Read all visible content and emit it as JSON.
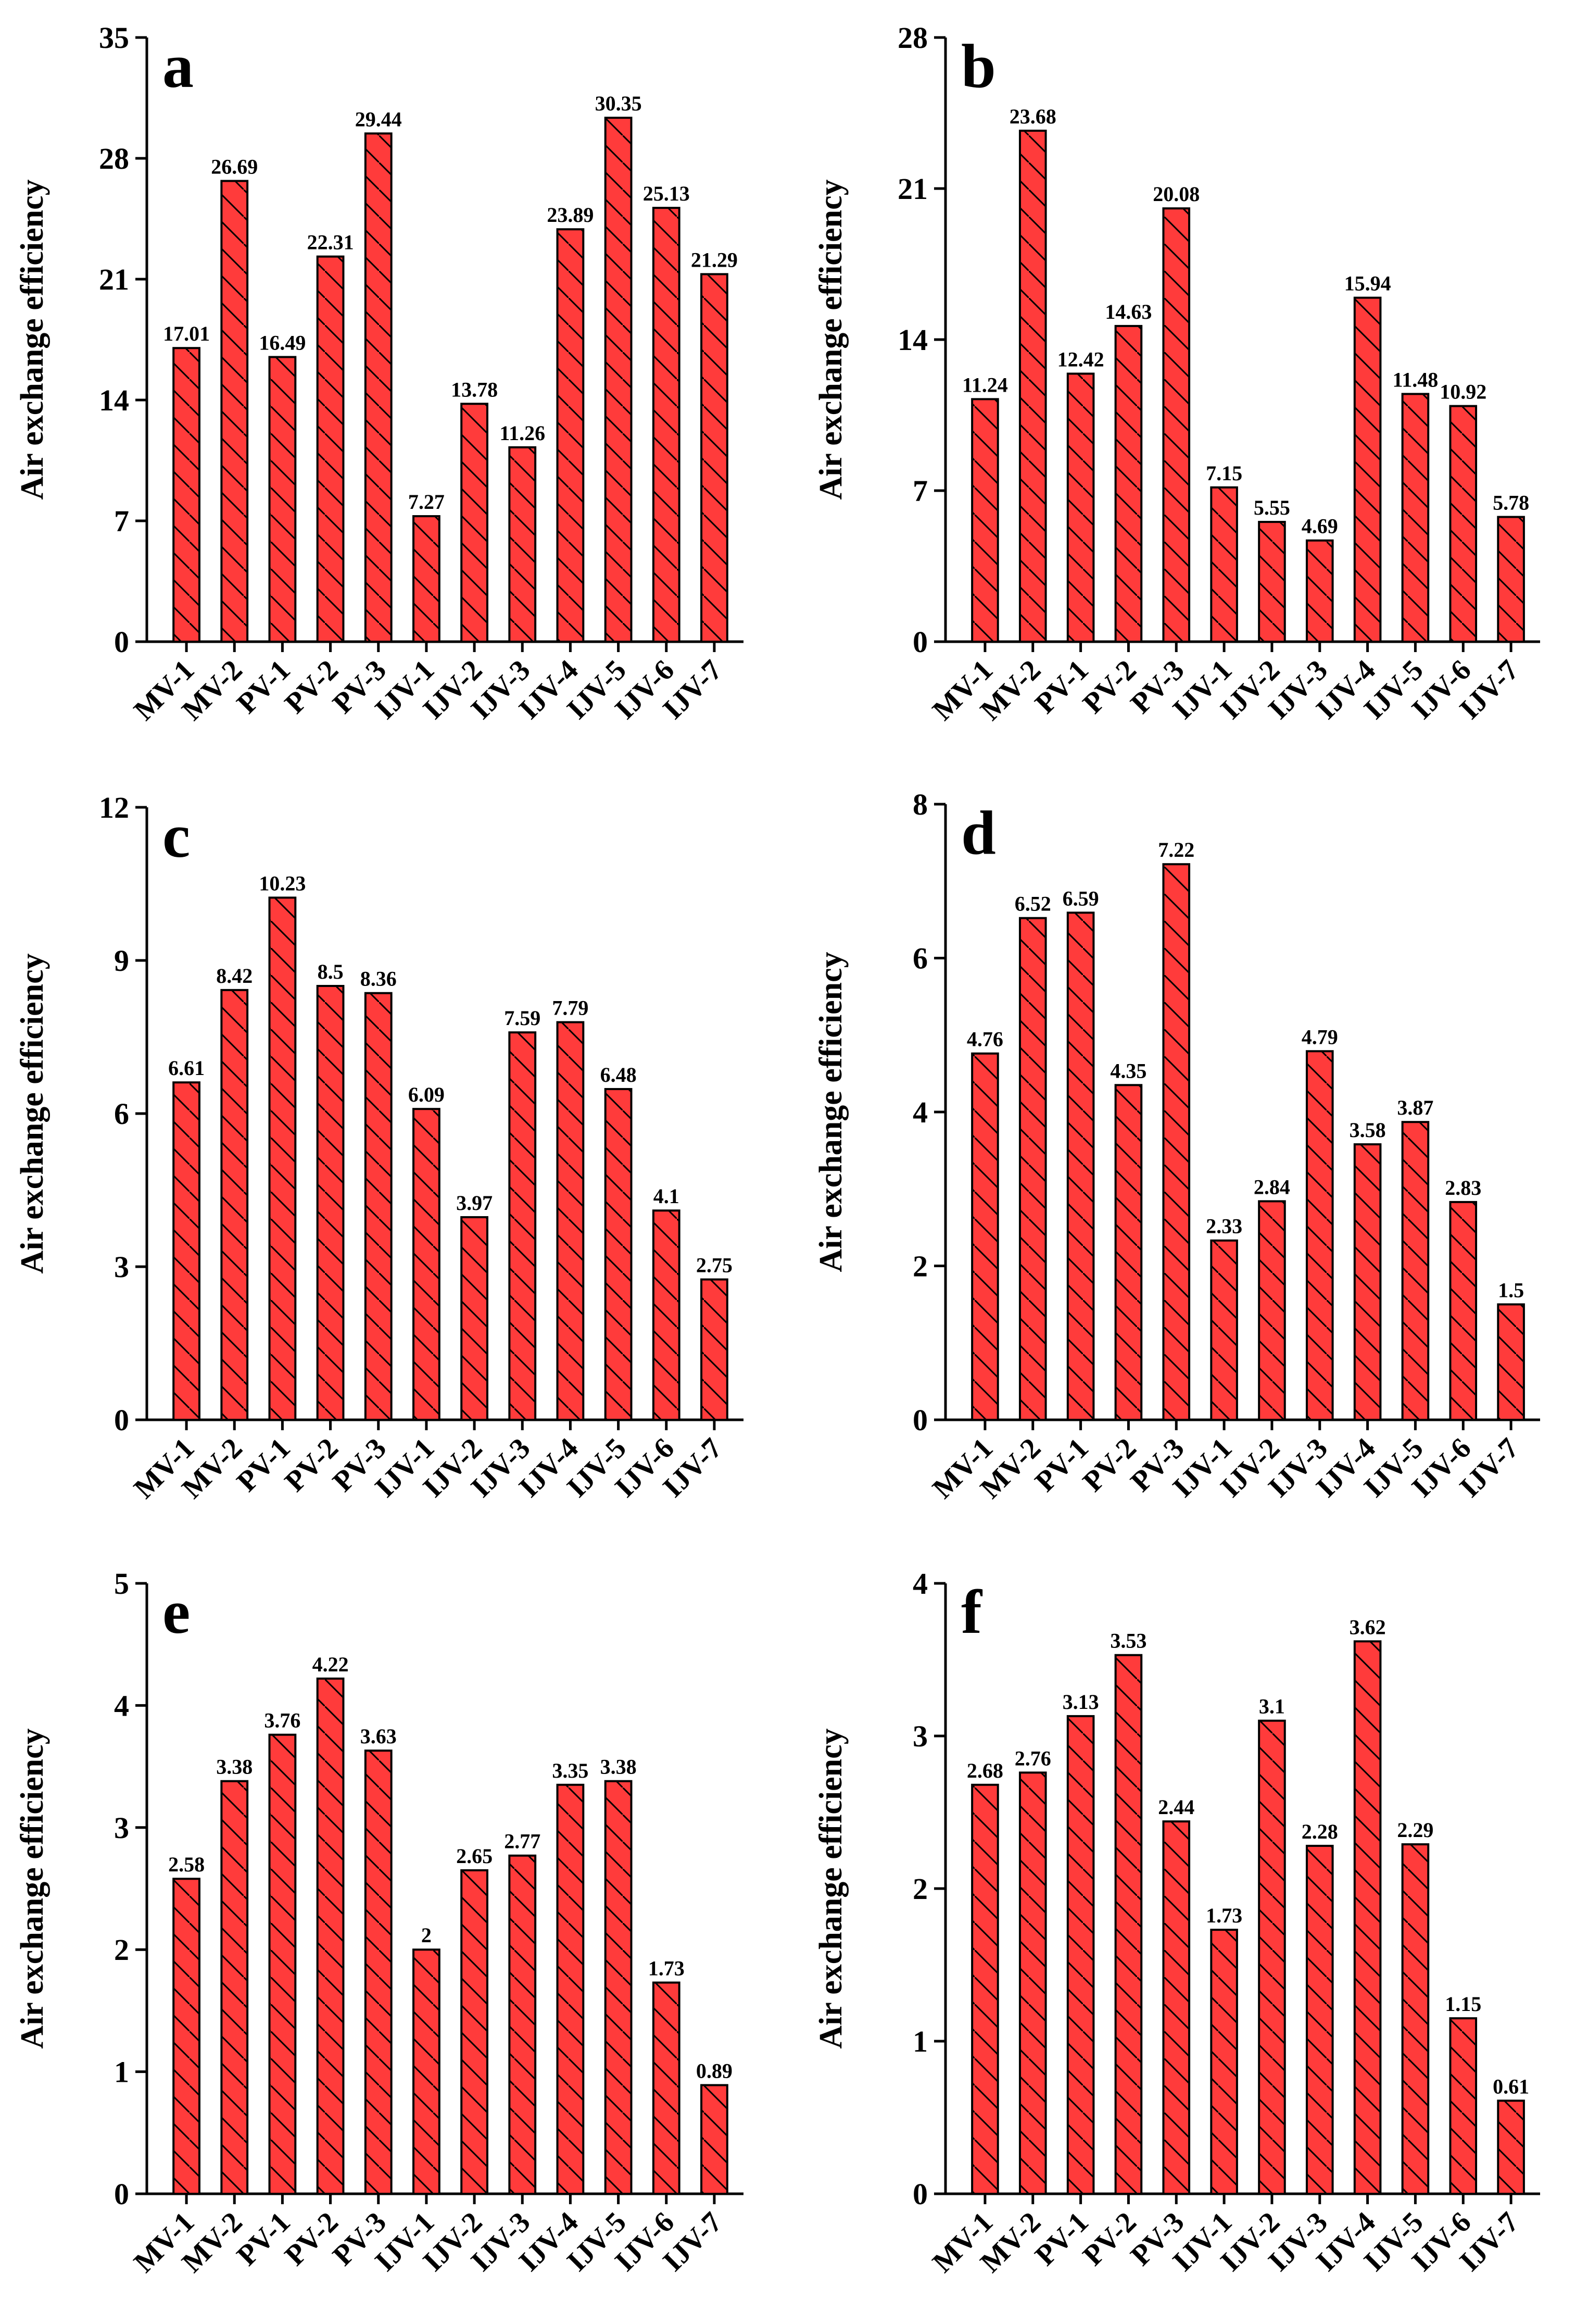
{
  "colors": {
    "bar_fill": "#ff3b3b",
    "bar_stroke": "#000000",
    "hatch": "#000000",
    "axis": "#000000"
  },
  "chart_data": [
    {
      "panel_label": "a",
      "type": "bar",
      "ylabel": "Air exchange efficiency",
      "xlabel": "",
      "ylim": [
        0,
        35
      ],
      "yticks": [
        "0",
        "7",
        "14",
        "21",
        "28",
        "35"
      ],
      "categories": [
        "MV-1",
        "MV-2",
        "PV-1",
        "PV-2",
        "PV-3",
        "IJV-1",
        "IJV-2",
        "IJV-3",
        "IJV-4",
        "IJV-5",
        "IJV-6",
        "IJV-7"
      ],
      "values": [
        17.01,
        26.69,
        16.49,
        22.31,
        29.44,
        7.27,
        13.78,
        11.26,
        23.89,
        30.35,
        25.13,
        21.29
      ],
      "value_labels": [
        "17.01",
        "26.69",
        "16.49",
        "22.31",
        "29.44",
        "7.27",
        "13.78",
        "11.26",
        "23.89",
        "30.35",
        "25.13",
        "21.29"
      ],
      "grid": false,
      "legend": "none"
    },
    {
      "panel_label": "b",
      "type": "bar",
      "ylabel": "Air exchange efficiency",
      "xlabel": "",
      "ylim": [
        0,
        28
      ],
      "yticks": [
        "0",
        "7",
        "14",
        "21",
        "28"
      ],
      "categories": [
        "MV-1",
        "MV-2",
        "PV-1",
        "PV-2",
        "PV-3",
        "IJV-1",
        "IJV-2",
        "IJV-3",
        "IJV-4",
        "IJV-5",
        "IJV-6",
        "IJV-7"
      ],
      "values": [
        11.24,
        23.68,
        12.42,
        14.63,
        20.08,
        7.15,
        5.55,
        4.69,
        15.94,
        11.48,
        10.92,
        5.78
      ],
      "value_labels": [
        "11.24",
        "23.68",
        "12.42",
        "14.63",
        "20.08",
        "7.15",
        "5.55",
        "4.69",
        "15.94",
        "11.48",
        "10.92",
        "5.78"
      ],
      "grid": false,
      "legend": "none"
    },
    {
      "panel_label": "c",
      "type": "bar",
      "ylabel": "Air exchange efficiency",
      "xlabel": "",
      "ylim": [
        0,
        12
      ],
      "yticks": [
        "0",
        "3",
        "6",
        "9",
        "12"
      ],
      "categories": [
        "MV-1",
        "MV-2",
        "PV-1",
        "PV-2",
        "PV-3",
        "IJV-1",
        "IJV-2",
        "IJV-3",
        "IJV-4",
        "IJV-5",
        "IJV-6",
        "IJV-7"
      ],
      "values": [
        6.61,
        8.42,
        10.23,
        8.5,
        8.36,
        6.09,
        3.97,
        7.59,
        7.79,
        6.48,
        4.1,
        2.75
      ],
      "value_labels": [
        "6.61",
        "8.42",
        "10.23",
        "8.5",
        "8.36",
        "6.09",
        "3.97",
        "7.59",
        "7.79",
        "6.48",
        "4.1",
        "2.75"
      ],
      "grid": false,
      "legend": "none"
    },
    {
      "panel_label": "d",
      "type": "bar",
      "ylabel": "Air exchange efficiency",
      "xlabel": "",
      "ylim": [
        0,
        8
      ],
      "yticks": [
        "0",
        "2",
        "4",
        "6",
        "8"
      ],
      "categories": [
        "MV-1",
        "MV-2",
        "PV-1",
        "PV-2",
        "PV-3",
        "IJV-1",
        "IJV-2",
        "IJV-3",
        "IJV-4",
        "IJV-5",
        "IJV-6",
        "IJV-7"
      ],
      "values": [
        4.76,
        6.52,
        6.59,
        4.35,
        7.22,
        2.33,
        2.84,
        4.79,
        3.58,
        3.87,
        2.83,
        1.5
      ],
      "value_labels": [
        "4.76",
        "6.52",
        "6.59",
        "4.35",
        "7.22",
        "2.33",
        "2.84",
        "4.79",
        "3.58",
        "3.87",
        "2.83",
        "1.5"
      ],
      "grid": false,
      "legend": "none"
    },
    {
      "panel_label": "e",
      "type": "bar",
      "ylabel": "Air exchange efficiency",
      "xlabel": "",
      "ylim": [
        0,
        5
      ],
      "yticks": [
        "0",
        "1",
        "2",
        "3",
        "4",
        "5"
      ],
      "categories": [
        "MV-1",
        "MV-2",
        "PV-1",
        "PV-2",
        "PV-3",
        "IJV-1",
        "IJV-2",
        "IJV-3",
        "IJV-4",
        "IJV-5",
        "IJV-6",
        "IJV-7"
      ],
      "values": [
        2.58,
        3.38,
        3.76,
        4.22,
        3.63,
        2,
        2.65,
        2.77,
        3.35,
        3.38,
        1.73,
        0.89
      ],
      "value_labels": [
        "2.58",
        "3.38",
        "3.76",
        "4.22",
        "3.63",
        "2",
        "2.65",
        "2.77",
        "3.35",
        "3.38",
        "1.73",
        "0.89"
      ],
      "grid": false,
      "legend": "none"
    },
    {
      "panel_label": "f",
      "type": "bar",
      "ylabel": "Air exchange efficiency",
      "xlabel": "",
      "ylim": [
        0,
        4
      ],
      "yticks": [
        "0",
        "1",
        "2",
        "3",
        "4"
      ],
      "categories": [
        "MV-1",
        "MV-2",
        "PV-1",
        "PV-2",
        "PV-3",
        "IJV-1",
        "IJV-2",
        "IJV-3",
        "IJV-4",
        "IJV-5",
        "IJV-6",
        "IJV-7"
      ],
      "values": [
        2.68,
        2.76,
        3.13,
        3.53,
        2.44,
        1.73,
        3.1,
        2.28,
        3.62,
        2.29,
        1.15,
        0.61
      ],
      "value_labels": [
        "2.68",
        "2.76",
        "3.13",
        "3.53",
        "2.44",
        "1.73",
        "3.1",
        "2.28",
        "3.62",
        "2.29",
        "1.15",
        "0.61"
      ],
      "grid": false,
      "legend": "none"
    }
  ]
}
